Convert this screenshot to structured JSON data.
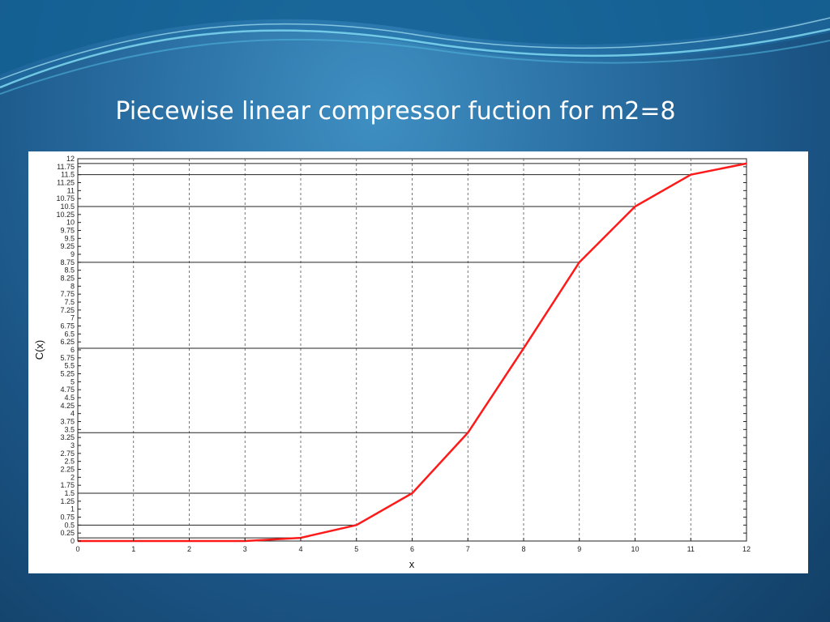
{
  "slide": {
    "title": "Piecewise linear compressor fuction for m2=8"
  },
  "colors": {
    "background": "#1b5586",
    "curve": "#ff1a1a",
    "reference_lines": "#222222",
    "grid": "#555555"
  },
  "chart_data": {
    "type": "line",
    "title": "",
    "xlabel": "x",
    "ylabel": "C(x)",
    "xlim": [
      0,
      12
    ],
    "ylim": [
      0,
      12
    ],
    "grid": "dashed vertical",
    "x_ticks": [
      "0",
      "1",
      "2",
      "3",
      "4",
      "5",
      "6",
      "7",
      "8",
      "9",
      "10",
      "11",
      "12"
    ],
    "y_ticks": [
      "0",
      "0.25",
      "0.5",
      "0.75",
      "1",
      "1.25",
      "1.5",
      "1.75",
      "2",
      "2.25",
      "2.5",
      "2.75",
      "3",
      "3.25",
      "3.5",
      "3.75",
      "4",
      "4.25",
      "4.5",
      "4.75",
      "5",
      "5.25",
      "5.5",
      "5.75",
      "6",
      "6.25",
      "6.5",
      "6.75",
      "7",
      "7.25",
      "7.5",
      "7.75",
      "8",
      "8.25",
      "8.5",
      "8.75",
      "9",
      "9.25",
      "9.5",
      "9.75",
      "10",
      "10.25",
      "10.5",
      "10.75",
      "11",
      "11.25",
      "11.5",
      "11.75",
      "12"
    ],
    "series": [
      {
        "color": "#ff1a1a",
        "x": [
          0,
          3,
          4,
          5,
          6,
          7,
          8,
          9,
          10,
          11,
          12
        ],
        "y": [
          0,
          0,
          0.1,
          0.5,
          1.5,
          3.4,
          6.05,
          8.75,
          10.5,
          11.5,
          11.85
        ]
      }
    ],
    "reference_lines": [
      {
        "x": 4,
        "y": 0.1
      },
      {
        "x": 5,
        "y": 0.5
      },
      {
        "x": 6,
        "y": 1.5
      },
      {
        "x": 7,
        "y": 3.4
      },
      {
        "x": 8,
        "y": 6.05
      },
      {
        "x": 9,
        "y": 8.75
      },
      {
        "x": 10,
        "y": 10.5
      },
      {
        "x": 11,
        "y": 11.5
      },
      {
        "x": 12,
        "y": 11.85
      }
    ]
  }
}
